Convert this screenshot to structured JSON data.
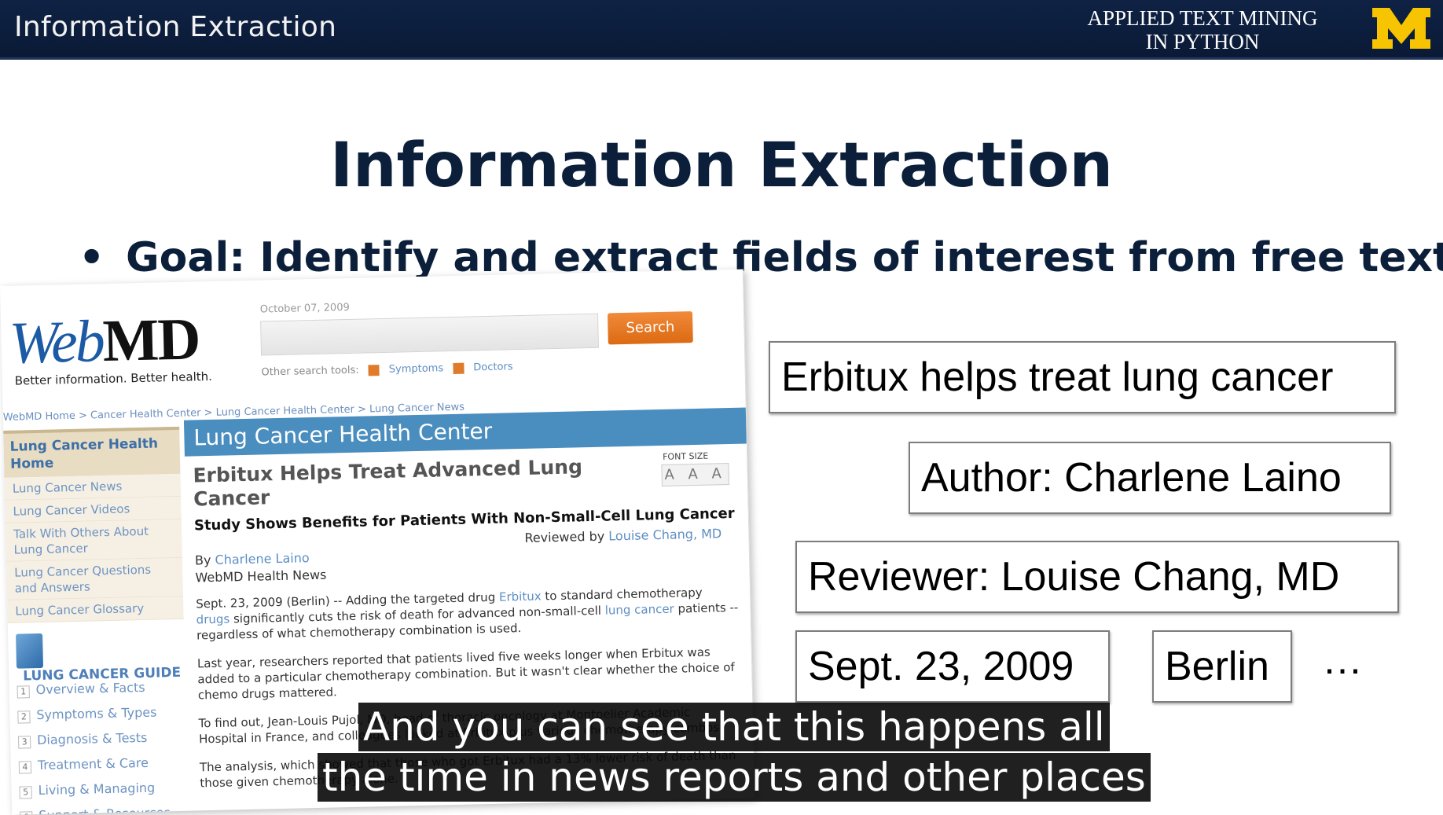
{
  "header": {
    "title": "Information Extraction",
    "course_line1": "APPLIED TEXT MINING",
    "course_line2": "IN PYTHON",
    "logo_letter": "M"
  },
  "slide": {
    "title": "Information Extraction",
    "bullet": "Goal: Identify and extract fields of interest from free text"
  },
  "webmd": {
    "logo_web": "Web",
    "logo_md": "MD",
    "tagline": "Better information. Better health.",
    "date": "October 07, 2009",
    "search_button": "Search",
    "other_tools": "Other search tools:",
    "tool1": "Symptoms",
    "tool2": "Doctors",
    "breadcrumb": "WebMD Home > Cancer Health Center > Lung Cancer Health Center > Lung Cancer News",
    "sidebar_home": "Lung Cancer Health Home",
    "sidebar_links": [
      "Lung Cancer News",
      "Lung Cancer Videos",
      "Talk With Others About Lung Cancer",
      "Lung Cancer Questions and Answers",
      "Lung Cancer Glossary"
    ],
    "guide_title": "LUNG CANCER GUIDE",
    "guide_steps": [
      "Overview & Facts",
      "Symptoms & Types",
      "Diagnosis & Tests",
      "Treatment & Care",
      "Living & Managing",
      "Support & Resources"
    ],
    "section_header": "Lung Cancer Health Center",
    "font_size_label": "FONT SIZE",
    "font_size_buttons": "A A A",
    "article_title": "Erbitux Helps Treat Advanced Lung Cancer",
    "article_subtitle": "Study Shows Benefits for Patients With Non-Small-Cell Lung Cancer",
    "reviewed_by": "Reviewed by",
    "reviewer": "Louise Chang, MD",
    "by": "By",
    "author": "Charlene Laino",
    "source": "WebMD Health News",
    "para1_a": "Sept. 23, 2009 (Berlin) -- Adding the targeted drug",
    "para1_drug": "Erbitux",
    "para1_b": "to standard chemotherapy",
    "para1_drugs": "drugs",
    "para1_c": "significantly cuts the risk of death for advanced non-small-cell",
    "para1_lc": "lung cancer",
    "para1_d": "patients -- regardless of what chemotherapy combination is used.",
    "para2": "Last year, researchers reported that patients lived five weeks longer when Erbitux was added to a particular chemotherapy combination. But it wasn't clear whether the choice of chemo drugs mattered.",
    "para3": "To find out, Jean-Louis Pujol, MD, head of thoracic oncology at Montpelier Academic Hospital in France, and colleagues looked at Erbitux plus various chemotherapy combos.",
    "para4": "The analysis, which showed that those who got Erbitux had a 13% lower risk of death than those given chemotherapy alone."
  },
  "fields": {
    "f1": "Erbitux helps treat lung cancer",
    "f2": "Author: Charlene Laino",
    "f3": "Reviewer: Louise Chang, MD",
    "f4": "Sept. 23, 2009",
    "f5": "Berlin",
    "more": "…"
  },
  "captions": {
    "line1": "And you can see that this happens all",
    "line2": "the time in news reports and other places"
  }
}
